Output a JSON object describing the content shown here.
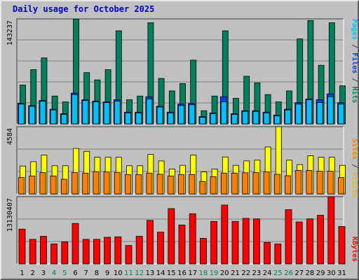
{
  "title": "Daily usage for October 2025",
  "colors": {
    "hits": "#00805c",
    "files": "#0040ff",
    "pages": "#00c0ff",
    "visits": "#ffff00",
    "sites": "#ff8000",
    "kbytes": "#ff0000",
    "weekend_label": "#00805c",
    "weekday_label": "#000000"
  },
  "legends": {
    "top": [
      {
        "text": "Pages",
        "color": "#00c0ff"
      },
      {
        "text": " / ",
        "color": "#404040"
      },
      {
        "text": "Files",
        "color": "#0040ff"
      },
      {
        "text": " / ",
        "color": "#404040"
      },
      {
        "text": "Hits",
        "color": "#00805c"
      }
    ],
    "middle": [
      {
        "text": "Sites",
        "color": "#ff8000"
      },
      {
        "text": " / ",
        "color": "#404040"
      },
      {
        "text": "Visits",
        "color": "#e0c000"
      }
    ],
    "bottom": [
      {
        "text": "KBytes",
        "color": "#ff0000"
      }
    ]
  },
  "chart_data": [
    {
      "type": "bar",
      "id": "hits-files-pages",
      "max_label": "143237",
      "ylim": [
        0,
        143237
      ],
      "categories": [
        "1",
        "2",
        "3",
        "4",
        "5",
        "6",
        "7",
        "8",
        "9",
        "10",
        "11",
        "12",
        "13",
        "14",
        "15",
        "16",
        "17",
        "18",
        "19",
        "20",
        "21",
        "22",
        "23",
        "24",
        "25",
        "26",
        "27",
        "28",
        "29",
        "30",
        "31"
      ],
      "weekend_days": [
        4,
        5,
        11,
        12,
        18,
        19,
        25,
        26
      ],
      "series": [
        {
          "name": "Hits",
          "values": [
            53000,
            74000,
            90000,
            38000,
            30000,
            143000,
            70000,
            60000,
            74000,
            127000,
            33000,
            38000,
            138000,
            62000,
            45000,
            55000,
            87000,
            18000,
            38000,
            127000,
            35000,
            65000,
            56000,
            40000,
            30000,
            45000,
            116000,
            141000,
            80000,
            138000,
            52000
          ]
        },
        {
          "name": "Files",
          "values": [
            28000,
            25000,
            32000,
            20000,
            14000,
            42000,
            33000,
            31000,
            30000,
            33000,
            16000,
            16000,
            37000,
            24000,
            16000,
            27000,
            28000,
            10000,
            15000,
            37000,
            14000,
            18000,
            18000,
            16000,
            12000,
            20000,
            29000,
            34000,
            33000,
            41000,
            29000
          ]
        },
        {
          "name": "Pages",
          "values": [
            27000,
            24000,
            31000,
            19000,
            13000,
            40000,
            32000,
            30000,
            29000,
            31000,
            15000,
            15000,
            34000,
            23000,
            15000,
            25000,
            26000,
            9000,
            14000,
            30000,
            13000,
            17000,
            17000,
            15000,
            11000,
            19000,
            27000,
            33000,
            29000,
            37000,
            27000
          ]
        }
      ]
    },
    {
      "type": "bar",
      "id": "visits-sites",
      "max_label": "4584",
      "ylim": [
        0,
        4584
      ],
      "categories": [
        "1",
        "2",
        "3",
        "4",
        "5",
        "6",
        "7",
        "8",
        "9",
        "10",
        "11",
        "12",
        "13",
        "14",
        "15",
        "16",
        "17",
        "18",
        "19",
        "20",
        "21",
        "22",
        "23",
        "24",
        "25",
        "26",
        "27",
        "28",
        "29",
        "30",
        "31"
      ],
      "series": [
        {
          "name": "Visits",
          "values": [
            1900,
            2200,
            2650,
            1920,
            1920,
            3100,
            2900,
            2500,
            2500,
            2500,
            1920,
            1920,
            2700,
            2250,
            1700,
            1950,
            2650,
            1500,
            1700,
            2520,
            1950,
            2250,
            2300,
            3200,
            4584,
            2300,
            2000,
            2600,
            2500,
            2500,
            1950
          ]
        },
        {
          "name": "Sites",
          "values": [
            1120,
            1220,
            1450,
            1220,
            1000,
            1450,
            1420,
            1520,
            1500,
            1470,
            1320,
            1320,
            1420,
            1340,
            1220,
            1320,
            1320,
            850,
            1170,
            1420,
            1420,
            1440,
            1450,
            1500,
            1340,
            1240,
            1600,
            1600,
            1550,
            1550,
            1120
          ]
        }
      ]
    },
    {
      "type": "bar",
      "id": "kbytes",
      "max_label": "13130407",
      "ylim": [
        0,
        13130407
      ],
      "categories": [
        "1",
        "2",
        "3",
        "4",
        "5",
        "6",
        "7",
        "8",
        "9",
        "10",
        "11",
        "12",
        "13",
        "14",
        "15",
        "16",
        "17",
        "18",
        "19",
        "20",
        "21",
        "22",
        "23",
        "24",
        "25",
        "26",
        "27",
        "28",
        "29",
        "30",
        "31"
      ],
      "series": [
        {
          "name": "KBytes",
          "values": [
            6800000,
            4800000,
            5400000,
            3900000,
            4300000,
            7900000,
            4800000,
            4800000,
            5200000,
            5300000,
            3600000,
            5400000,
            8500000,
            6200000,
            10800000,
            7600000,
            9800000,
            5000000,
            8300000,
            11500000,
            8300000,
            8900000,
            8800000,
            4200000,
            3900000,
            10600000,
            8200000,
            8800000,
            9500000,
            13130407,
            7300000
          ]
        }
      ]
    }
  ]
}
